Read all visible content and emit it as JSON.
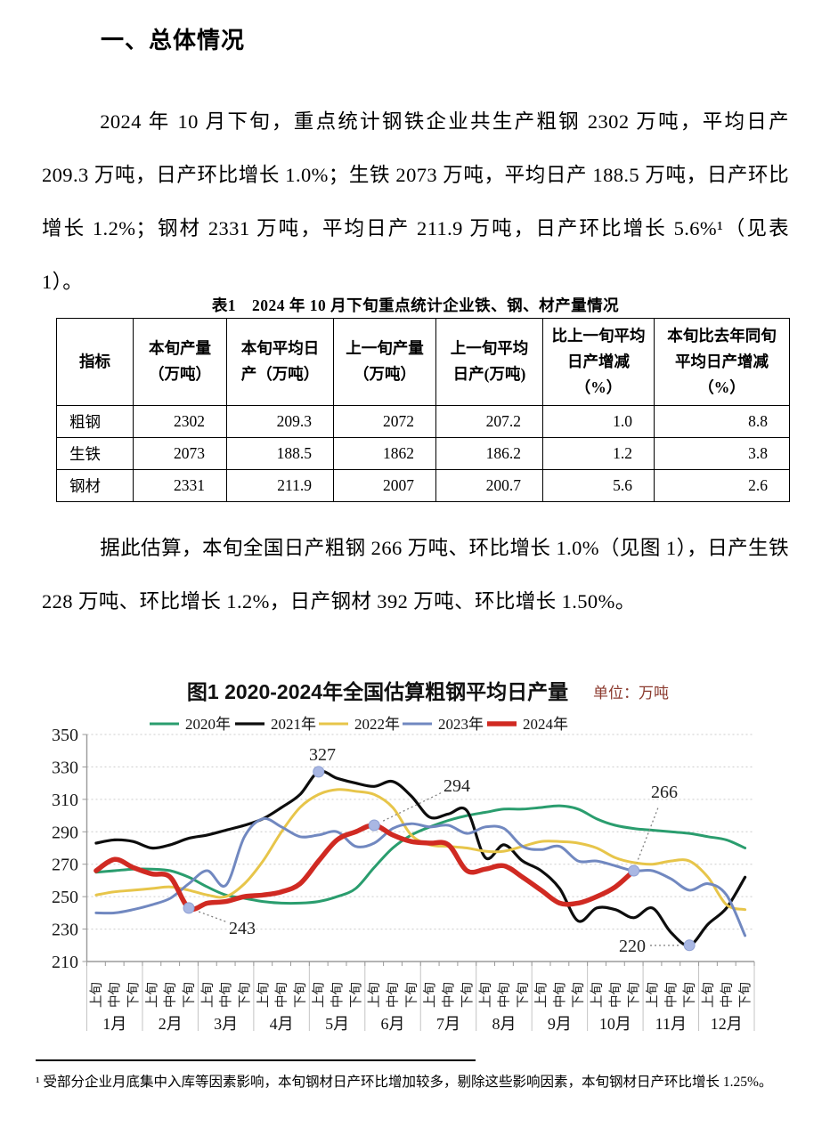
{
  "page": {
    "heading": "一、总体情况",
    "para1": "2024 年 10 月下旬，重点统计钢铁企业共生产粗钢 2302 万吨，平均日产 209.3 万吨，日产环比增长 1.0%；生铁 2073 万吨，平均日产 188.5 万吨，日产环比增长 1.2%；钢材 2331 万吨，平均日产 211.9 万吨，日产环比增长 5.6%¹（见表 1）。",
    "para2": "据此估算，本旬全国日产粗钢 266 万吨、环比增长 1.0%（见图 1），日产生铁 228 万吨、环比增长 1.2%，日产钢材 392 万吨、环比增长 1.50%。",
    "footnote": "¹ 受部分企业月底集中入库等因素影响，本旬钢材日产环比增加较多，剔除这些影响因素，本旬钢材日产环比增长 1.25%。"
  },
  "table": {
    "title": "表1　2024 年 10 月下旬重点统计企业铁、钢、材产量情况",
    "columns": [
      "指标",
      "本旬产量（万吨）",
      "本旬平均日产（万吨）",
      "上一旬产量（万吨）",
      "上一旬平均日产(万吨)",
      "比上一旬平均日产增减（%）",
      "本旬比去年同旬平均日产增减（%）"
    ],
    "rows": [
      [
        "粗钢",
        "2302",
        "209.3",
        "2072",
        "207.2",
        "1.0",
        "8.8"
      ],
      [
        "生铁",
        "2073",
        "188.5",
        "1862",
        "186.2",
        "1.2",
        "3.8"
      ],
      [
        "钢材",
        "2331",
        "211.9",
        "2007",
        "200.7",
        "5.6",
        "2.6"
      ]
    ]
  },
  "chart_data": {
    "type": "line",
    "title": "图1  2020-2024年全国估算粗钢平均日产量",
    "unit_label": "单位：万吨",
    "unit_color": "#8b3a2e",
    "ylabel": "万吨",
    "ylim": [
      210,
      350
    ],
    "ytick_step": 20,
    "grid": true,
    "legend_position": "top",
    "months": [
      "1月",
      "2月",
      "3月",
      "4月",
      "5月",
      "6月",
      "7月",
      "8月",
      "9月",
      "10月",
      "11月",
      "12月"
    ],
    "periods": [
      "上旬",
      "中旬",
      "下旬"
    ],
    "series": [
      {
        "name": "2020年",
        "color": "#2a9d6e",
        "width": 3,
        "values": [
          265,
          266,
          267,
          267,
          266,
          262,
          256,
          251,
          249,
          247,
          246,
          246,
          247,
          250,
          255,
          268,
          280,
          288,
          293,
          297,
          300,
          302,
          304,
          304,
          305,
          306,
          304,
          298,
          294,
          292,
          291,
          290,
          289,
          287,
          285,
          280
        ]
      },
      {
        "name": "2021年",
        "color": "#0d0d0d",
        "width": 3.2,
        "values": [
          283,
          285,
          284,
          280,
          282,
          286,
          288,
          291,
          294,
          298,
          305,
          313,
          327,
          323,
          320,
          318,
          321,
          312,
          299,
          301,
          303,
          274,
          282,
          272,
          266,
          255,
          235,
          243,
          242,
          237,
          243,
          228,
          220,
          233,
          243,
          262
        ]
      },
      {
        "name": "2022年",
        "color": "#e7c54a",
        "width": 3,
        "values": [
          251,
          253,
          254,
          255,
          256,
          254,
          251,
          250,
          258,
          272,
          290,
          305,
          313,
          316,
          315,
          313,
          305,
          288,
          282,
          281,
          280,
          278,
          278,
          281,
          284,
          284,
          283,
          280,
          274,
          271,
          270,
          272,
          272,
          262,
          245,
          242
        ]
      },
      {
        "name": "2023年",
        "color": "#7188c0",
        "width": 3,
        "values": [
          240,
          240,
          242,
          245,
          249,
          258,
          266,
          257,
          287,
          298,
          293,
          287,
          288,
          290,
          281,
          283,
          292,
          295,
          293,
          294,
          289,
          293,
          292,
          281,
          279,
          281,
          272,
          272,
          269,
          266,
          266,
          261,
          254,
          258,
          251,
          226
        ]
      },
      {
        "name": "2024年",
        "color": "#d02a22",
        "width": 5.5,
        "values": [
          266,
          273,
          268,
          264,
          262,
          243,
          246,
          247,
          250,
          251,
          253,
          258,
          272,
          285,
          290,
          294,
          288,
          284,
          283,
          282,
          266,
          267,
          269,
          262,
          254,
          246,
          246,
          250,
          256,
          266
        ]
      }
    ],
    "annotations": [
      {
        "label": "327",
        "series": "2021年",
        "index": 12,
        "lx": 362,
        "ly": 106
      },
      {
        "label": "243",
        "series": "2024年",
        "index": 5,
        "lx": 272,
        "ly": 301
      },
      {
        "label": "294",
        "series": "2024年",
        "index": 15,
        "lx": 513,
        "ly": 141
      },
      {
        "label": "266",
        "series": "2024年",
        "index": 29,
        "lx": 746,
        "ly": 148
      },
      {
        "label": "220",
        "series": "2021年",
        "index": 32,
        "lx": 710,
        "ly": 321
      }
    ],
    "marker_color": "#a9b7e3",
    "marker_edge": "#8d9fd2",
    "grid_color": "#cccccc",
    "axis_color": "#9a9a9a",
    "divider_color": "#c4c4c4"
  }
}
